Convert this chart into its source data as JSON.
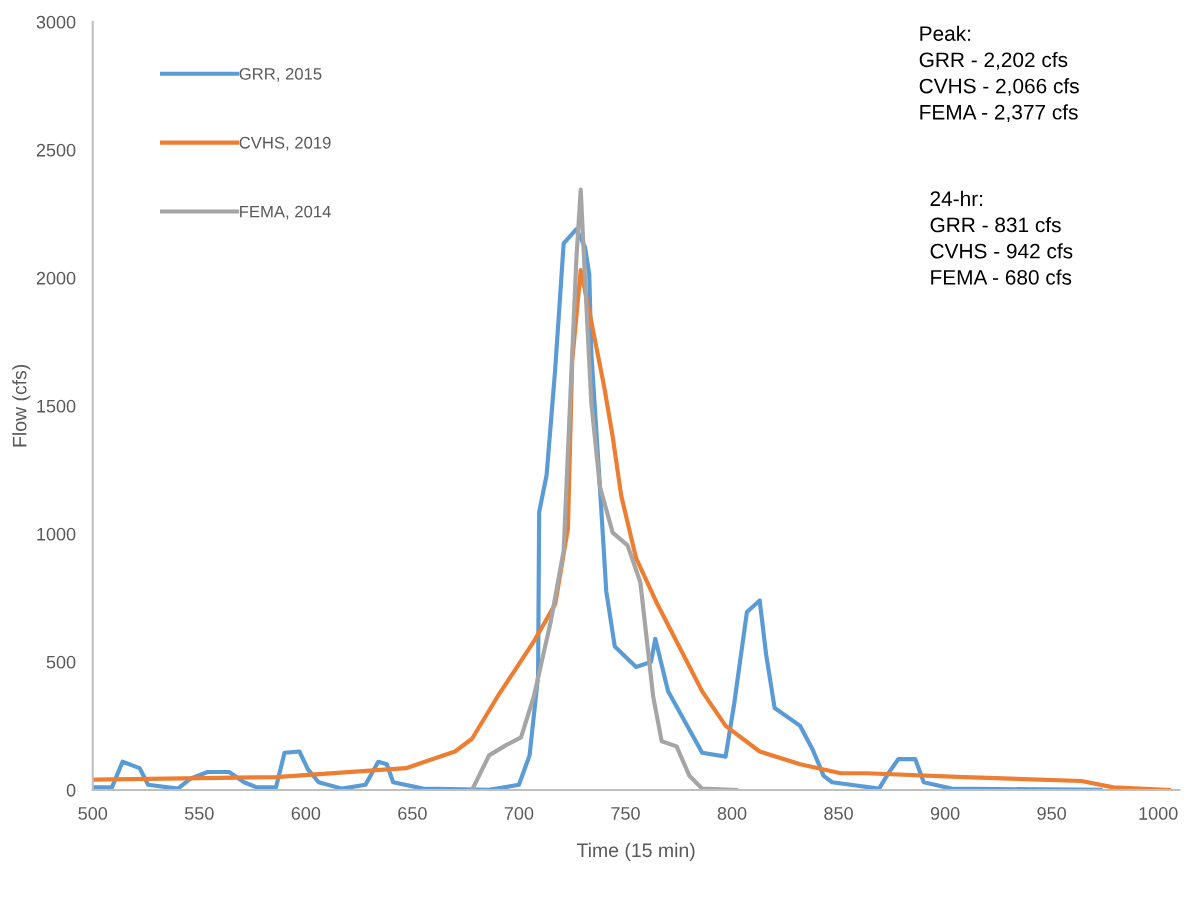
{
  "chart_data": {
    "type": "line",
    "xlabel": "Time (15 min)",
    "ylabel": "Flow (cfs)",
    "xlim": [
      500,
      1010
    ],
    "xticks": [
      500,
      550,
      600,
      650,
      700,
      750,
      800,
      850,
      900,
      950,
      1000
    ],
    "ylim": [
      0,
      3000
    ],
    "yticks": [
      0,
      500,
      1000,
      1500,
      2000,
      2500,
      3000
    ],
    "grid": false,
    "legend": "top left",
    "marker": "none",
    "line_style": "solid",
    "annotations": [
      "Peak:\nGRR - 2,202 cfs\nCVHS - 2,066 cfs\nFEMA - 2,377 cfs",
      "24-hr:\nGRR - 831 cfs\nCVHS - 942 cfs\nFEMA - 680 cfs"
    ],
    "series": [
      {
        "name": "GRR, 2015",
        "color": "#5b9bd5",
        "x": [
          501,
          509,
          514,
          522,
          526,
          540,
          546,
          554,
          564,
          571,
          577,
          586,
          590,
          597,
          601,
          606,
          617,
          628,
          634,
          638,
          641,
          655,
          686,
          700,
          705,
          709,
          709.5,
          713,
          717,
          721,
          727,
          731,
          733,
          734,
          738,
          741,
          745,
          755,
          762,
          764,
          770,
          778,
          786,
          797,
          801,
          807,
          813,
          816,
          820,
          832,
          838,
          843,
          847,
          869,
          873,
          878,
          886,
          890,
          903,
          973
        ],
        "values": [
          10,
          10,
          110,
          85,
          20,
          5,
          45,
          70,
          70,
          30,
          10,
          10,
          145,
          150,
          80,
          30,
          5,
          20,
          110,
          100,
          30,
          5,
          0,
          20,
          135,
          445,
          1085,
          1230,
          1640,
          2135,
          2190,
          2120,
          2015,
          1705,
          1185,
          775,
          560,
          480,
          500,
          590,
          385,
          265,
          145,
          130,
          335,
          695,
          740,
          530,
          320,
          250,
          155,
          55,
          30,
          5,
          60,
          120,
          120,
          30,
          5,
          0
        ]
      },
      {
        "name": "CVHS, 2019",
        "color": "#ed7d31",
        "x": [
          501,
          586,
          647,
          670,
          678,
          690,
          707,
          717,
          723,
          725,
          729,
          733,
          740,
          744,
          748,
          755,
          765,
          774,
          786,
          797,
          813,
          832,
          851,
          863,
          909,
          964,
          979,
          1005
        ],
        "values": [
          40,
          50,
          85,
          150,
          200,
          365,
          580,
          725,
          1020,
          1675,
          2030,
          1870,
          1575,
          1380,
          1150,
          905,
          725,
          580,
          385,
          250,
          150,
          100,
          65,
          65,
          50,
          35,
          10,
          0
        ]
      },
      {
        "name": "FEMA, 2014",
        "color": "#a5a5a5",
        "x": [
          678,
          686,
          694,
          701,
          707,
          715,
          721,
          724,
          727,
          729,
          731,
          734,
          738,
          744,
          751,
          757,
          763,
          767,
          774,
          780,
          786,
          802
        ],
        "values": [
          0,
          135,
          175,
          205,
          365,
          660,
          935,
          1510,
          2080,
          2345,
          2000,
          1510,
          1185,
          1005,
          955,
          810,
          365,
          190,
          170,
          55,
          5,
          0
        ]
      }
    ]
  }
}
